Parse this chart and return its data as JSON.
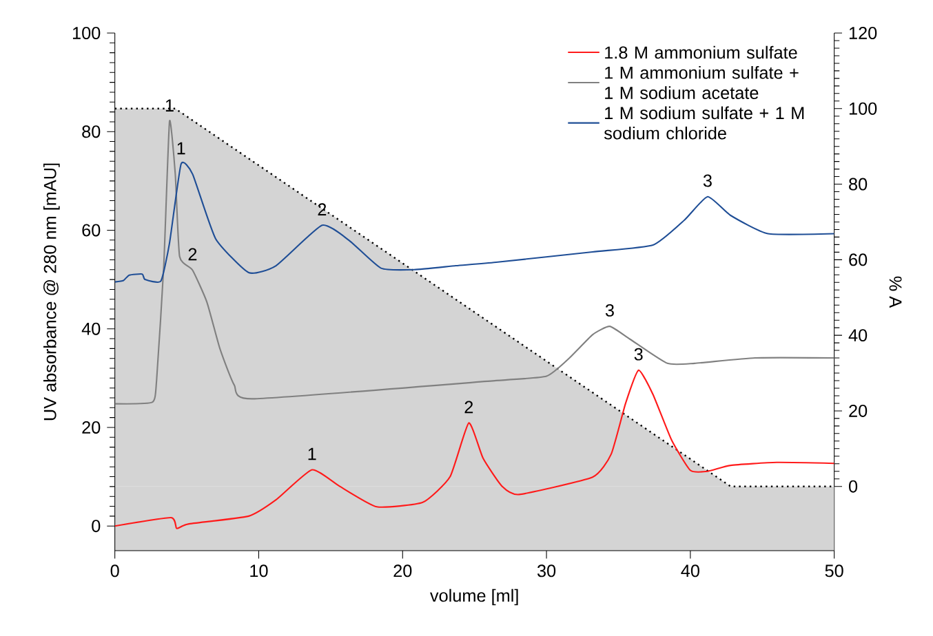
{
  "chart_data": {
    "type": "line",
    "xlabel": "volume [ml]",
    "ylabel": "UV absorbance @ 280 nm [mAU]",
    "y2label": "% A",
    "xlim": [
      0,
      50
    ],
    "xticks": [
      0,
      10,
      20,
      30,
      40,
      50
    ],
    "ylim": [
      -5,
      100
    ],
    "yticks": [
      0,
      20,
      40,
      60,
      80,
      100
    ],
    "y2lim": [
      -17,
      120
    ],
    "y2ticks": [
      0,
      20,
      40,
      60,
      80,
      100,
      120
    ],
    "legend": "top right",
    "grid": false,
    "bands": [
      {
        "axis": "y2",
        "from": -17,
        "to": 0,
        "color": "#d4d4d4"
      }
    ],
    "series": [
      {
        "type": "area",
        "axis": "y2",
        "color": "#d4d4d4",
        "line_style": "dotted",
        "x": [
          0,
          4.2,
          42.8,
          50
        ],
        "values": [
          100,
          100,
          0,
          0
        ]
      },
      {
        "name": "1.8 M ammonium sulfate",
        "color": "#ff1a1a",
        "x": [
          0,
          3.9,
          4.3,
          5.1,
          9.3,
          11.2,
          13.7,
          15.6,
          18.2,
          21.4,
          23.3,
          24.6,
          25.6,
          26.9,
          28.1,
          33.2,
          34.5,
          35.5,
          36.4,
          37.4,
          38.7,
          40.0,
          41.2,
          42.8,
          46.0,
          50.0
        ],
        "values": [
          0,
          1.7,
          -0.5,
          0.4,
          2.0,
          5.3,
          11.4,
          8.1,
          3.9,
          4.8,
          10,
          20.9,
          13.7,
          8.1,
          6.4,
          9.9,
          14.6,
          24.9,
          31.6,
          26.7,
          17.4,
          11.3,
          11.1,
          12.3,
          12.9,
          12.7
        ]
      },
      {
        "name": "1 M ammonium sulfate + 1 M sodium acetate",
        "color": "#808080",
        "x": [
          0,
          2.6,
          2.9,
          3.4,
          3.8,
          4.2,
          4.5,
          5.4,
          6.4,
          7.3,
          8.3,
          9.6,
          26.5,
          30.0,
          31.6,
          33.2,
          34.4,
          35.8,
          38.4,
          40.3,
          44.5,
          50
        ],
        "values": [
          24.8,
          25.1,
          29.5,
          52.8,
          82.1,
          71.4,
          54.7,
          51.9,
          45.4,
          36.0,
          28.6,
          25.8,
          29.5,
          30.4,
          34.1,
          38.8,
          40.5,
          37.9,
          33.0,
          33.0,
          34.1,
          34.1
        ]
      },
      {
        "name": "1 M sodium sulfate + 1 M sodium chloride",
        "color": "#1f4e96",
        "x": [
          0,
          0.6,
          1.0,
          1.9,
          2.1,
          3.2,
          3.8,
          4.6,
          5.4,
          7.0,
          9.3,
          11.2,
          14.4,
          16.3,
          18.5,
          20.8,
          23.7,
          26.5,
          33.2,
          37.4,
          39.6,
          41.2,
          42.8,
          45.4,
          50
        ],
        "values": [
          49.5,
          49.8,
          50.9,
          51.1,
          50.0,
          49.7,
          57.4,
          73.4,
          71.4,
          58.3,
          51.4,
          52.8,
          61.0,
          57.9,
          52.3,
          52.0,
          52.8,
          53.5,
          55.6,
          57.0,
          62.1,
          66.8,
          63.0,
          59.3,
          59.3
        ]
      }
    ],
    "annotations": [
      {
        "text": "1",
        "x": 3.8,
        "y": 82.1
      },
      {
        "text": "1",
        "x": 4.6,
        "y": 73.4
      },
      {
        "text": "2",
        "x": 5.4,
        "y": 51.9
      },
      {
        "text": "2",
        "x": 14.4,
        "y": 61.0
      },
      {
        "text": "1",
        "x": 13.7,
        "y": 11.4
      },
      {
        "text": "2",
        "x": 24.6,
        "y": 20.9
      },
      {
        "text": "3",
        "x": 34.4,
        "y": 40.5
      },
      {
        "text": "3",
        "x": 41.2,
        "y": 66.8
      },
      {
        "text": "3",
        "x": 36.4,
        "y": 31.6
      }
    ]
  }
}
